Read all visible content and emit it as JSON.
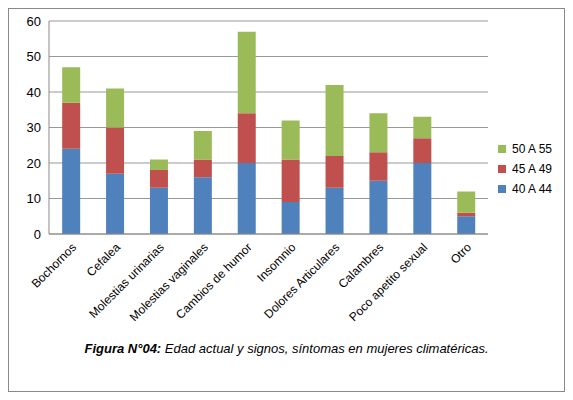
{
  "chart_data": {
    "type": "bar",
    "title": "Figura N°04: Edad actual y signos, síntomas en mujeres climatéricas.",
    "categories": [
      "Bochornos",
      "Cefalea",
      "Molestias urinarias",
      "Molestias vaginales",
      "Cambios de humor",
      "Insomnio",
      "Dolores Articulares",
      "Calambres",
      "Poco apetito sexual",
      "Otro"
    ],
    "series": [
      {
        "name": "40 A 44",
        "color": "#4f81bd",
        "values": [
          24,
          17,
          13,
          16,
          20,
          9,
          13,
          15,
          20,
          5
        ]
      },
      {
        "name": "45 A 49",
        "color": "#c0504d",
        "values": [
          13,
          13,
          5,
          5,
          14,
          12,
          9,
          8,
          7,
          1
        ]
      },
      {
        "name": "50 A 55",
        "color": "#9bbb59",
        "values": [
          10,
          11,
          3,
          8,
          23,
          11,
          20,
          11,
          6,
          6
        ]
      }
    ],
    "ylim": [
      0,
      60
    ],
    "yticks": [
      0,
      10,
      20,
      30,
      40,
      50,
      60
    ],
    "grid": true,
    "stacked": true,
    "legend": "right"
  }
}
